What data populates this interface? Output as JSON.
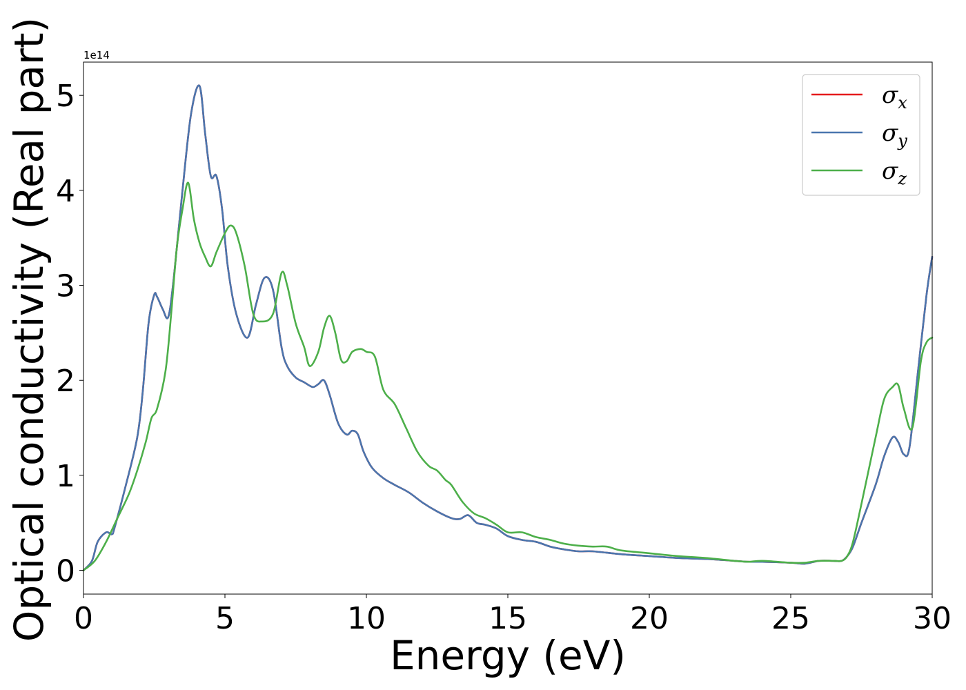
{
  "chart_data": {
    "type": "line",
    "xlabel": "Energy (eV)",
    "ylabel": "Optical conductivity (Real part)",
    "y_offset_text": "1e14",
    "y_scale": 100000000000000.0,
    "xlim": [
      0,
      30
    ],
    "ylim": [
      -0.25,
      5.35
    ],
    "x_ticks": [
      0,
      5,
      10,
      15,
      20,
      25,
      30
    ],
    "x_tick_labels": [
      "0",
      "5",
      "10",
      "15",
      "20",
      "25",
      "30"
    ],
    "y_ticks": [
      0,
      1,
      2,
      3,
      4,
      5
    ],
    "y_tick_labels": [
      "0",
      "1",
      "2",
      "3",
      "4",
      "5"
    ],
    "grid": false,
    "legend_position": "top-right",
    "series": [
      {
        "name": "σx",
        "legend_base": "σ",
        "legend_sub": "x",
        "color": "#e41a1c",
        "x": [
          0,
          0.3,
          0.5,
          0.8,
          1.0,
          1.1,
          1.5,
          1.9,
          2.1,
          2.3,
          2.5,
          2.6,
          2.8,
          3.0,
          3.2,
          3.5,
          3.8,
          4.1,
          4.3,
          4.5,
          4.7,
          4.9,
          5.1,
          5.4,
          5.8,
          6.1,
          6.4,
          6.7,
          7.0,
          7.2,
          7.5,
          7.8,
          8.1,
          8.3,
          8.5,
          8.7,
          9.0,
          9.3,
          9.5,
          9.7,
          9.9,
          10.2,
          10.6,
          11.0,
          11.5,
          12.0,
          12.5,
          13.0,
          13.3,
          13.6,
          13.9,
          14.2,
          14.6,
          15.0,
          15.5,
          16.0,
          16.5,
          17.0,
          17.5,
          18.0,
          19.0,
          20.0,
          21.0,
          22.0,
          23.0,
          23.5,
          24.0,
          25.0,
          25.5,
          26.0,
          26.5,
          26.8,
          27.0,
          27.2,
          27.5,
          28.0,
          28.3,
          28.6,
          28.8,
          29.0,
          29.2,
          29.5,
          29.8,
          30.0
        ],
        "y": [
          0,
          0.1,
          0.3,
          0.4,
          0.38,
          0.45,
          0.9,
          1.4,
          1.9,
          2.6,
          2.9,
          2.88,
          2.75,
          2.67,
          3.1,
          4.0,
          4.8,
          5.1,
          4.6,
          4.15,
          4.15,
          3.8,
          3.2,
          2.7,
          2.45,
          2.8,
          3.08,
          2.95,
          2.35,
          2.15,
          2.03,
          1.98,
          1.93,
          1.96,
          2.0,
          1.85,
          1.55,
          1.43,
          1.47,
          1.43,
          1.25,
          1.08,
          0.97,
          0.9,
          0.82,
          0.71,
          0.62,
          0.55,
          0.54,
          0.58,
          0.5,
          0.48,
          0.44,
          0.36,
          0.32,
          0.3,
          0.25,
          0.22,
          0.2,
          0.2,
          0.17,
          0.15,
          0.13,
          0.12,
          0.1,
          0.09,
          0.09,
          0.08,
          0.07,
          0.1,
          0.1,
          0.1,
          0.15,
          0.25,
          0.5,
          0.9,
          1.2,
          1.4,
          1.35,
          1.22,
          1.3,
          2.1,
          2.9,
          3.3
        ]
      },
      {
        "name": "σy",
        "legend_base": "σ",
        "legend_sub": "y",
        "color": "#4a76ae",
        "x": [
          0,
          0.3,
          0.5,
          0.8,
          1.0,
          1.1,
          1.5,
          1.9,
          2.1,
          2.3,
          2.5,
          2.6,
          2.8,
          3.0,
          3.2,
          3.5,
          3.8,
          4.1,
          4.3,
          4.5,
          4.7,
          4.9,
          5.1,
          5.4,
          5.8,
          6.1,
          6.4,
          6.7,
          7.0,
          7.2,
          7.5,
          7.8,
          8.1,
          8.3,
          8.5,
          8.7,
          9.0,
          9.3,
          9.5,
          9.7,
          9.9,
          10.2,
          10.6,
          11.0,
          11.5,
          12.0,
          12.5,
          13.0,
          13.3,
          13.6,
          13.9,
          14.2,
          14.6,
          15.0,
          15.5,
          16.0,
          16.5,
          17.0,
          17.5,
          18.0,
          19.0,
          20.0,
          21.0,
          22.0,
          23.0,
          23.5,
          24.0,
          25.0,
          25.5,
          26.0,
          26.5,
          26.8,
          27.0,
          27.2,
          27.5,
          28.0,
          28.3,
          28.6,
          28.8,
          29.0,
          29.2,
          29.5,
          29.8,
          30.0
        ],
        "y": [
          0,
          0.1,
          0.3,
          0.4,
          0.38,
          0.45,
          0.9,
          1.4,
          1.9,
          2.6,
          2.9,
          2.88,
          2.75,
          2.67,
          3.1,
          4.0,
          4.8,
          5.1,
          4.6,
          4.15,
          4.15,
          3.8,
          3.2,
          2.7,
          2.45,
          2.8,
          3.08,
          2.95,
          2.35,
          2.15,
          2.03,
          1.98,
          1.93,
          1.96,
          2.0,
          1.85,
          1.55,
          1.43,
          1.47,
          1.43,
          1.25,
          1.08,
          0.97,
          0.9,
          0.82,
          0.71,
          0.62,
          0.55,
          0.54,
          0.58,
          0.5,
          0.48,
          0.44,
          0.36,
          0.32,
          0.3,
          0.25,
          0.22,
          0.2,
          0.2,
          0.17,
          0.15,
          0.13,
          0.12,
          0.1,
          0.09,
          0.09,
          0.08,
          0.07,
          0.1,
          0.1,
          0.1,
          0.15,
          0.25,
          0.5,
          0.9,
          1.2,
          1.4,
          1.35,
          1.22,
          1.3,
          2.1,
          2.9,
          3.3
        ]
      },
      {
        "name": "σz",
        "legend_base": "σ",
        "legend_sub": "z",
        "color": "#4daf4a",
        "x": [
          0,
          0.4,
          0.8,
          1.2,
          1.6,
          1.9,
          2.2,
          2.4,
          2.6,
          2.9,
          3.1,
          3.3,
          3.5,
          3.7,
          3.9,
          4.1,
          4.3,
          4.5,
          4.7,
          5.0,
          5.2,
          5.4,
          5.7,
          6.0,
          6.3,
          6.7,
          7.0,
          7.2,
          7.5,
          7.8,
          8.0,
          8.3,
          8.5,
          8.7,
          8.9,
          9.1,
          9.3,
          9.5,
          9.8,
          10.0,
          10.3,
          10.6,
          11.0,
          11.4,
          11.8,
          12.2,
          12.5,
          12.8,
          13.0,
          13.4,
          13.8,
          14.2,
          14.6,
          15.0,
          15.5,
          16.0,
          16.5,
          17.0,
          17.5,
          18.0,
          18.5,
          19.0,
          20.0,
          21.0,
          22.0,
          23.0,
          23.5,
          24.0,
          25.0,
          25.5,
          26.0,
          26.5,
          26.8,
          27.0,
          27.2,
          27.5,
          28.0,
          28.3,
          28.6,
          28.8,
          29.0,
          29.3,
          29.6,
          29.8,
          30.0
        ],
        "y": [
          0,
          0.1,
          0.3,
          0.55,
          0.8,
          1.05,
          1.35,
          1.6,
          1.7,
          2.1,
          2.7,
          3.4,
          3.8,
          4.08,
          3.7,
          3.45,
          3.3,
          3.2,
          3.35,
          3.55,
          3.63,
          3.55,
          3.2,
          2.7,
          2.62,
          2.7,
          3.13,
          3.0,
          2.6,
          2.35,
          2.15,
          2.3,
          2.55,
          2.68,
          2.5,
          2.22,
          2.2,
          2.3,
          2.33,
          2.3,
          2.25,
          1.9,
          1.75,
          1.5,
          1.25,
          1.1,
          1.05,
          0.95,
          0.9,
          0.72,
          0.6,
          0.55,
          0.48,
          0.4,
          0.4,
          0.35,
          0.32,
          0.28,
          0.26,
          0.25,
          0.25,
          0.21,
          0.18,
          0.15,
          0.13,
          0.1,
          0.09,
          0.1,
          0.08,
          0.08,
          0.1,
          0.1,
          0.1,
          0.15,
          0.3,
          0.7,
          1.4,
          1.8,
          1.93,
          1.95,
          1.7,
          1.5,
          2.2,
          2.4,
          2.45
        ]
      }
    ]
  }
}
